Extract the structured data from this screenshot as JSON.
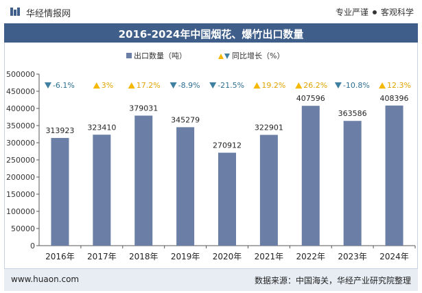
{
  "header": {
    "brand": "华经情报网",
    "tagline_left": "专业严谨",
    "tagline_right": "客观科学"
  },
  "footer": {
    "website": "www.huaon.com",
    "source": "数据来源：中国海关，华经产业研究院整理"
  },
  "colors": {
    "bar": "#6b7fa6",
    "up": "#f5b800",
    "down": "#3f7fa0",
    "title_bg": "#3f5f8a"
  },
  "chart_data": {
    "type": "bar",
    "title": "2016-2024年中国烟花、爆竹出口数量",
    "categories": [
      "2016年",
      "2017年",
      "2018年",
      "2019年",
      "2020年",
      "2021年",
      "2022年",
      "2023年",
      "2024年"
    ],
    "series": [
      {
        "name": "出口数量（吨）",
        "values": [
          313923,
          323410,
          379031,
          345279,
          270912,
          322901,
          407596,
          363586,
          408396
        ]
      },
      {
        "name": "同比增长（%）",
        "values": [
          -6.1,
          3,
          17.2,
          -8.9,
          -21.5,
          19.2,
          26.2,
          -10.8,
          12.3
        ]
      }
    ],
    "growth_labels": [
      "-6.1%",
      "3%",
      "17.2%",
      "-8.9%",
      "-21.5%",
      "19.2%",
      "26.2%",
      "-10.8%",
      "12.3%"
    ],
    "yticks": [
      "0",
      "50000",
      "100000",
      "150000",
      "200000",
      "250000",
      "300000",
      "350000",
      "400000",
      "450000",
      "500000"
    ],
    "ylim": [
      0,
      500000
    ],
    "legend": "top-center",
    "grid": false
  }
}
